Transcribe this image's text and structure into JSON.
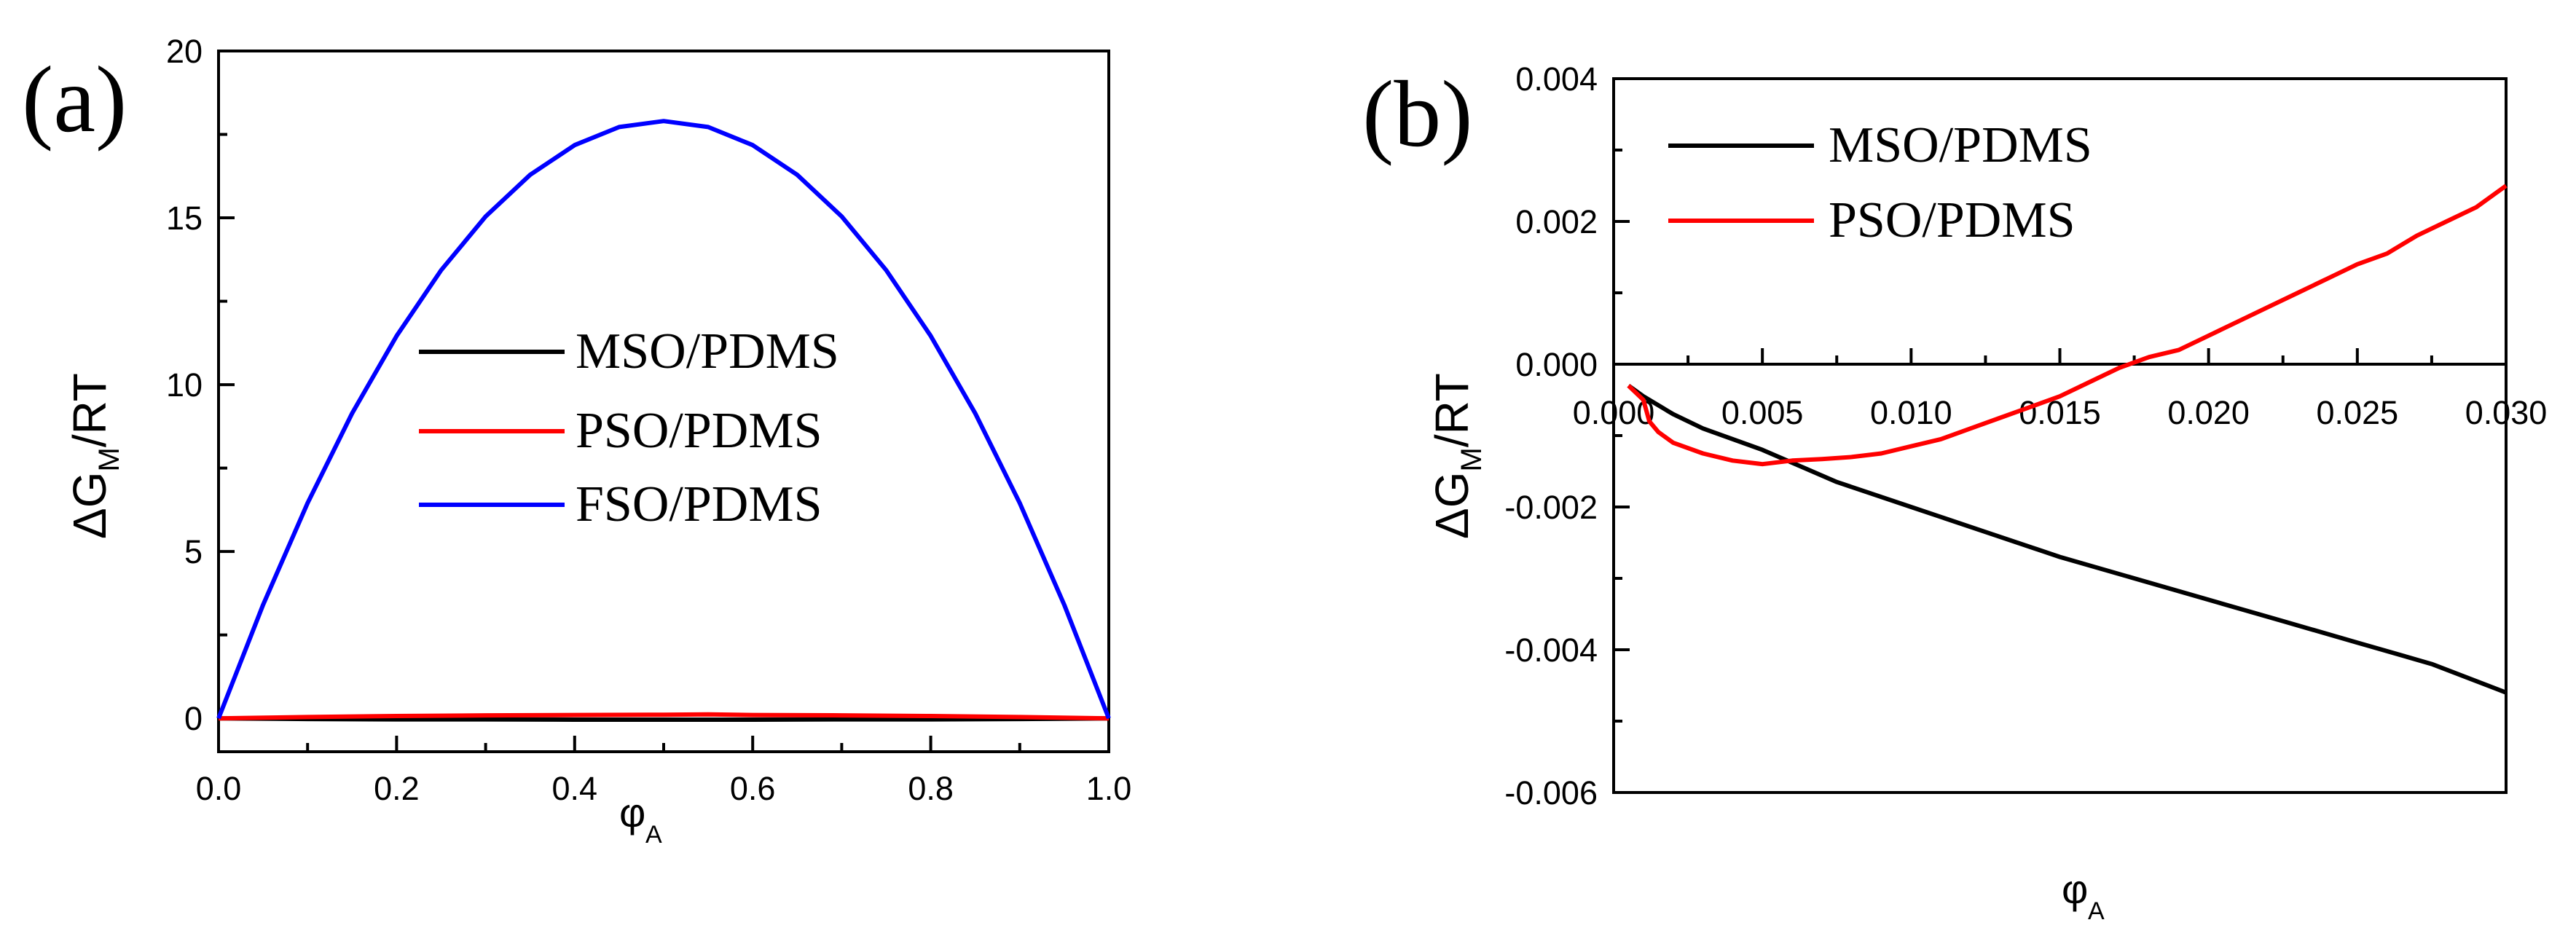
{
  "chart_data": [
    {
      "panel_label": "(a)",
      "type": "line",
      "xlabel_main": "φ",
      "xlabel_sub": "A",
      "ylabel_main": "ΔG",
      "ylabel_sub": "M",
      "ylabel_tail": "/RT",
      "xlim": [
        0.0,
        1.0
      ],
      "ylim": [
        -1,
        20
      ],
      "xticks": [
        0.0,
        0.2,
        0.4,
        0.6,
        0.8,
        1.0
      ],
      "xtick_labels": [
        "0.0",
        "0.2",
        "0.4",
        "0.6",
        "0.8",
        "1.0"
      ],
      "yticks": [
        0,
        5,
        10,
        15,
        20
      ],
      "ytick_labels": [
        "0",
        "5",
        "10",
        "15",
        "20"
      ],
      "legend_position": "center-right",
      "series": [
        {
          "name": "MSO/PDMS",
          "color": "#000000",
          "x": [
            0.0,
            0.1,
            0.2,
            0.3,
            0.4,
            0.5,
            0.6,
            0.7,
            0.8,
            0.9,
            1.0
          ],
          "y": [
            0,
            -0.02,
            -0.03,
            -0.03,
            -0.04,
            -0.04,
            -0.04,
            -0.03,
            -0.03,
            -0.02,
            0
          ]
        },
        {
          "name": "PSO/PDMS",
          "color": "#ff0000",
          "x": [
            0.0,
            0.1,
            0.2,
            0.3,
            0.4,
            0.5,
            0.55,
            0.6,
            0.7,
            0.8,
            0.9,
            1.0
          ],
          "y": [
            0,
            0.04,
            0.07,
            0.09,
            0.1,
            0.11,
            0.12,
            0.1,
            0.09,
            0.07,
            0.04,
            0
          ]
        },
        {
          "name": "FSO/PDMS",
          "color": "#0000ff",
          "x": [
            0.0,
            0.05,
            0.1,
            0.15,
            0.2,
            0.25,
            0.3,
            0.35,
            0.4,
            0.45,
            0.5,
            0.55,
            0.6,
            0.65,
            0.7,
            0.75,
            0.8,
            0.85,
            0.9,
            0.95,
            1.0
          ],
          "y": [
            0,
            3.4,
            6.45,
            9.14,
            11.46,
            13.43,
            15.04,
            16.29,
            17.18,
            17.72,
            17.9,
            17.72,
            17.18,
            16.29,
            15.04,
            13.43,
            11.46,
            9.14,
            6.45,
            3.4,
            0
          ]
        }
      ]
    },
    {
      "panel_label": "(b)",
      "type": "line",
      "xlabel_main": "φ",
      "xlabel_sub": "A",
      "ylabel_main": "ΔG",
      "ylabel_sub": "M",
      "ylabel_tail": "/RT",
      "xlim": [
        0.0,
        0.03
      ],
      "ylim": [
        -0.006,
        0.004
      ],
      "xticks": [
        0.0,
        0.005,
        0.01,
        0.015,
        0.02,
        0.025,
        0.03
      ],
      "xtick_labels": [
        "0.000",
        "0.005",
        "0.010",
        "0.015",
        "0.020",
        "0.025",
        "0.030"
      ],
      "yticks": [
        -0.006,
        -0.004,
        -0.002,
        0.0,
        0.002,
        0.004
      ],
      "ytick_labels": [
        "-0.006",
        "-0.004",
        "-0.002",
        "0.000",
        "0.002",
        "0.004"
      ],
      "legend_position": "top-left",
      "series": [
        {
          "name": "MSO/PDMS",
          "color": "#000000",
          "x": [
            0.0005,
            0.001,
            0.002,
            0.003,
            0.005,
            0.0075,
            0.01,
            0.0125,
            0.015,
            0.0175,
            0.02,
            0.0225,
            0.025,
            0.0275,
            0.03
          ],
          "y": [
            -0.0003,
            -0.00045,
            -0.0007,
            -0.0009,
            -0.0012,
            -0.00165,
            -0.002,
            -0.00235,
            -0.0027,
            -0.003,
            -0.0033,
            -0.0036,
            -0.0039,
            -0.0042,
            -0.0046
          ]
        },
        {
          "name": "PSO/PDMS",
          "color": "#ff0000",
          "x": [
            0.0005,
            0.001,
            0.0012,
            0.0015,
            0.002,
            0.003,
            0.004,
            0.005,
            0.006,
            0.007,
            0.008,
            0.009,
            0.01,
            0.011,
            0.012,
            0.013,
            0.014,
            0.015,
            0.016,
            0.017,
            0.018,
            0.019,
            0.02,
            0.021,
            0.022,
            0.023,
            0.024,
            0.025,
            0.026,
            0.027,
            0.028,
            0.029,
            0.03
          ],
          "y": [
            -0.0003,
            -0.0005,
            -0.0008,
            -0.00095,
            -0.0011,
            -0.00125,
            -0.00135,
            -0.0014,
            -0.00135,
            -0.00133,
            -0.0013,
            -0.00125,
            -0.00115,
            -0.00105,
            -0.0009,
            -0.00075,
            -0.0006,
            -0.00045,
            -0.00025,
            -5e-05,
            0.0001,
            0.0002,
            0.0004,
            0.0006,
            0.0008,
            0.001,
            0.0012,
            0.0014,
            0.00155,
            0.0018,
            0.002,
            0.0022,
            0.0025
          ]
        }
      ]
    }
  ]
}
